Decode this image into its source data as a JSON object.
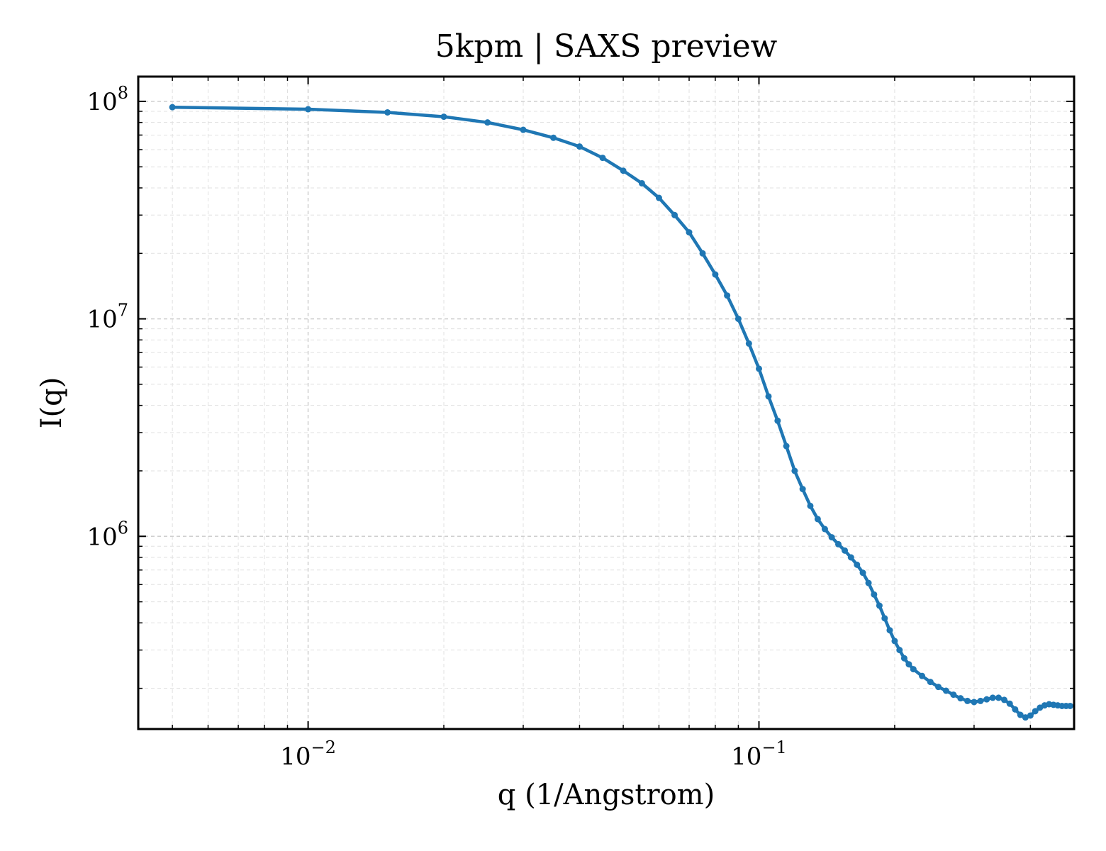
{
  "chart_data": {
    "type": "line",
    "title": "5kpm | SAXS preview",
    "xlabel": "q (1/Angstrom)",
    "ylabel": "I(q)",
    "xscale": "log",
    "yscale": "log",
    "xlim": [
      0.0042,
      0.5
    ],
    "ylim": [
      130000,
      130000000
    ],
    "grid": true,
    "legend": "none",
    "x_ticks": [
      {
        "value": 0.01,
        "base": "10",
        "exp": "−2"
      },
      {
        "value": 0.1,
        "base": "10",
        "exp": "−1"
      }
    ],
    "y_ticks": [
      {
        "value": 1000000,
        "base": "10",
        "exp": "6"
      },
      {
        "value": 10000000,
        "base": "10",
        "exp": "7"
      },
      {
        "value": 100000000,
        "base": "10",
        "exp": "8"
      }
    ],
    "color": "#1f77b4",
    "series": [
      {
        "x": [
          0.005,
          0.01,
          0.015,
          0.02,
          0.025,
          0.03,
          0.035,
          0.04,
          0.045,
          0.05,
          0.055,
          0.06,
          0.065,
          0.07,
          0.075,
          0.08,
          0.085,
          0.09,
          0.095,
          0.1,
          0.105,
          0.11,
          0.115,
          0.12,
          0.125,
          0.13,
          0.135,
          0.14,
          0.145,
          0.15,
          0.155,
          0.16,
          0.165,
          0.17,
          0.175,
          0.18,
          0.185,
          0.19,
          0.195,
          0.2,
          0.205,
          0.21,
          0.215,
          0.22,
          0.23,
          0.24,
          0.25,
          0.26,
          0.27,
          0.28,
          0.29,
          0.3,
          0.31,
          0.32,
          0.33,
          0.34,
          0.35,
          0.36,
          0.37,
          0.38,
          0.39,
          0.4,
          0.41,
          0.42,
          0.43,
          0.44,
          0.45,
          0.46,
          0.47,
          0.48,
          0.49
        ],
        "y": [
          94000000,
          92000000,
          89000000,
          85000000,
          80000000,
          74000000,
          68000000,
          62000000,
          55000000,
          48000000,
          42000000,
          36000000,
          30000000,
          25000000,
          20000000,
          16000000,
          12800000,
          10000000,
          7700000,
          5900000,
          4400000,
          3400000,
          2600000,
          2000000,
          1650000,
          1380000,
          1200000,
          1080000,
          990000,
          920000,
          860000,
          800000,
          740000,
          680000,
          610000,
          540000,
          480000,
          420000,
          370000,
          330000,
          300000,
          275000,
          258000,
          245000,
          228000,
          214000,
          203000,
          195000,
          187000,
          180000,
          175000,
          173000,
          175000,
          178000,
          181000,
          181000,
          177000,
          170000,
          160000,
          151000,
          147000,
          150000,
          157000,
          163000,
          167000,
          169000,
          168000,
          167000,
          166000,
          166000,
          166000
        ]
      }
    ]
  }
}
